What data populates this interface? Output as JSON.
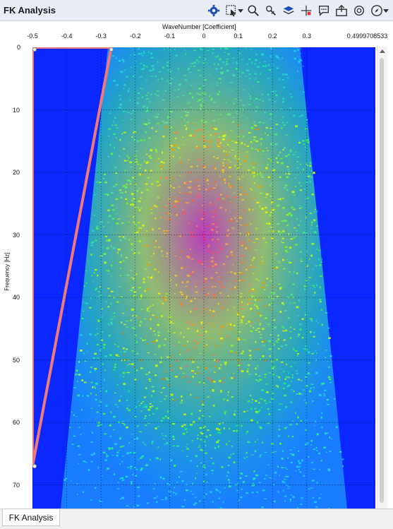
{
  "window": {
    "title": "FK Analysis"
  },
  "toolbar": {
    "icons": [
      "gear-icon",
      "select-region-icon",
      "dropdown-caret-icon",
      "zoom-icon",
      "pan-icon",
      "layers-icon",
      "crosshair-icon",
      "annotation-icon",
      "export-icon",
      "fit-icon",
      "compass-icon",
      "dropdown-caret-icon"
    ]
  },
  "colors": {
    "background_blue": "#0a27ff",
    "polygon": "#f07878",
    "grid": "#000000"
  },
  "chart_data": {
    "type": "heatmap",
    "xlabel": "WaveNumber [Coefficient]",
    "ylabel": "Frequency [Hz]",
    "x_ticks": [
      "-0.5",
      "-0.4",
      "-0.3",
      "-0.2",
      "-0.1",
      "0",
      "0.1",
      "0.2",
      "0.3",
      "0.4999708533"
    ],
    "y_ticks": [
      "0",
      "10",
      "20",
      "30",
      "40",
      "50",
      "60",
      "70"
    ],
    "xlim": [
      -0.5,
      0.4999708533
    ],
    "ylim": [
      0,
      75
    ],
    "y_inverted": true,
    "colormap": [
      "#0a27ff",
      "#1a7cff",
      "#19c8ff",
      "#20e8a0",
      "#48f048",
      "#c8f020",
      "#f0f000",
      "#f04000",
      "#ff1090"
    ],
    "energy_region": {
      "description_polygon_vertices": [
        [
          -0.28,
          0
        ],
        [
          0.28,
          0
        ],
        [
          0.42,
          75
        ],
        [
          -0.42,
          75
        ]
      ],
      "peak_band_hz": [
        12,
        50
      ],
      "peak_wavenumber_range": [
        -0.3,
        0.3
      ]
    },
    "filter_polygon": {
      "vertices": [
        [
          -0.5,
          0
        ],
        [
          -0.27,
          0
        ],
        [
          -0.5,
          67
        ],
        [
          -0.5,
          0
        ]
      ]
    }
  },
  "tabs": [
    {
      "label": "FK Analysis",
      "active": true
    }
  ]
}
